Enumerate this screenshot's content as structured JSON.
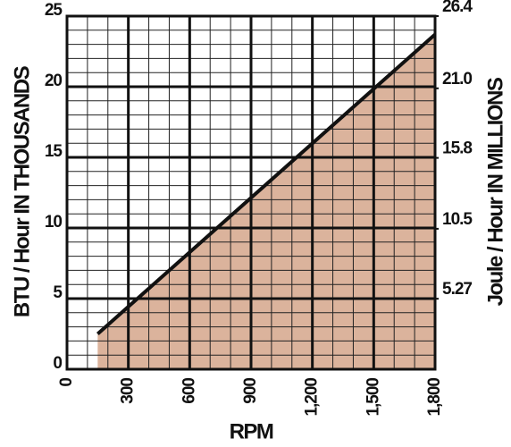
{
  "chart_data": {
    "type": "area",
    "x_label": "RPM",
    "y_label": "BTU / Hour IN THOUSANDS",
    "y2_label": "Joule / Hour IN MILLIONS",
    "series": [
      {
        "x": [
          150,
          1800
        ],
        "values": [
          2.5,
          23.7
        ],
        "color": "#dbb39c"
      }
    ],
    "xlim": [
      0,
      1800
    ],
    "xticks": [
      0,
      300,
      600,
      900,
      {
        "value": 1200,
        "label": "1,200"
      },
      {
        "value": 1500,
        "label": "1,500"
      },
      {
        "value": 1800,
        "label": "1,800"
      }
    ],
    "ylim": [
      0,
      25
    ],
    "yticks": [
      0,
      5,
      10,
      15,
      20,
      25
    ],
    "y2lim": [
      0,
      26.4
    ],
    "y2ticks": [
      5.27,
      10.5,
      15.8,
      {
        "value": 21,
        "label": "21.0"
      },
      26.4
    ],
    "grid": true
  }
}
